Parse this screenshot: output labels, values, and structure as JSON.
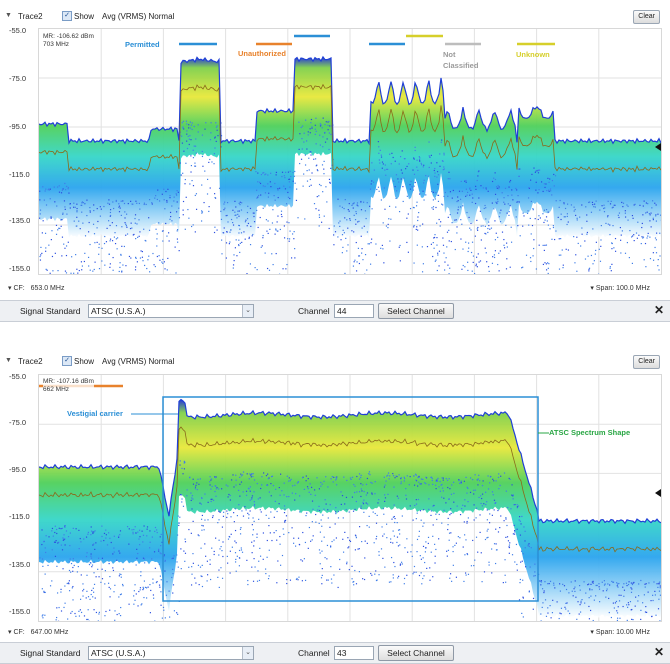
{
  "colors": {
    "permitted": "#2b8fd6",
    "unauthorized": "#e8822c",
    "not_classified": "#bdbdbd",
    "unknown": "#d6cf2a",
    "trace_peak": "#1f3fd6",
    "avg_trace": "#8a6a1a",
    "vestigial": "#2b8fd6",
    "atsc_shape": "#2aa745",
    "box": "#2b8fd6"
  },
  "panels": [
    {
      "toolbar": {
        "trace": "Trace2",
        "show_label": "Show",
        "mode": "Avg (VRMS) Normal",
        "clear_label": "Clear"
      },
      "y_ticks": [
        "-55.0",
        "-75.0",
        "-95.0",
        "-115.0",
        "-135.0",
        "-155.0"
      ],
      "marker": {
        "line1": "MR: -106.62 dBm",
        "line2": "703 MHz"
      },
      "legend": {
        "permitted": "Permitted",
        "unauthorized": "Unauthorized",
        "not_classified_1": "Not",
        "not_classified_2": "Classified",
        "unknown": "Unknown"
      },
      "footer": {
        "cf_label": "CF:",
        "cf_value": "653.0 MHz",
        "span_label": "Span:",
        "span_value": "100.0 MHz"
      },
      "controls": {
        "standard_label": "Signal Standard",
        "standard_value": "ATSC (U.S.A.)",
        "channel_label": "Channel",
        "channel_value": "44",
        "select_label": "Select Channel",
        "close_icon": "close-icon"
      }
    },
    {
      "toolbar": {
        "trace": "Trace2",
        "show_label": "Show",
        "mode": "Avg (VRMS) Normal",
        "clear_label": "Clear"
      },
      "y_ticks": [
        "-55.0",
        "-75.0",
        "-95.0",
        "-115.0",
        "-135.0",
        "-155.0"
      ],
      "marker": {
        "line1": "MR: -107.16 dBm",
        "line2": "662 MHz"
      },
      "annotations": {
        "vestigial": "Vestigial carrier",
        "atsc": "ATSC Spectrum Shape"
      },
      "footer": {
        "cf_label": "CF:",
        "cf_value": "647.00 MHz",
        "span_label": "Span:",
        "span_value": "10.00 MHz"
      },
      "controls": {
        "standard_label": "Signal Standard",
        "standard_value": "ATSC (U.S.A.)",
        "channel_label": "Channel",
        "channel_value": "43",
        "select_label": "Select Channel",
        "close_icon": "close-icon"
      }
    }
  ]
}
